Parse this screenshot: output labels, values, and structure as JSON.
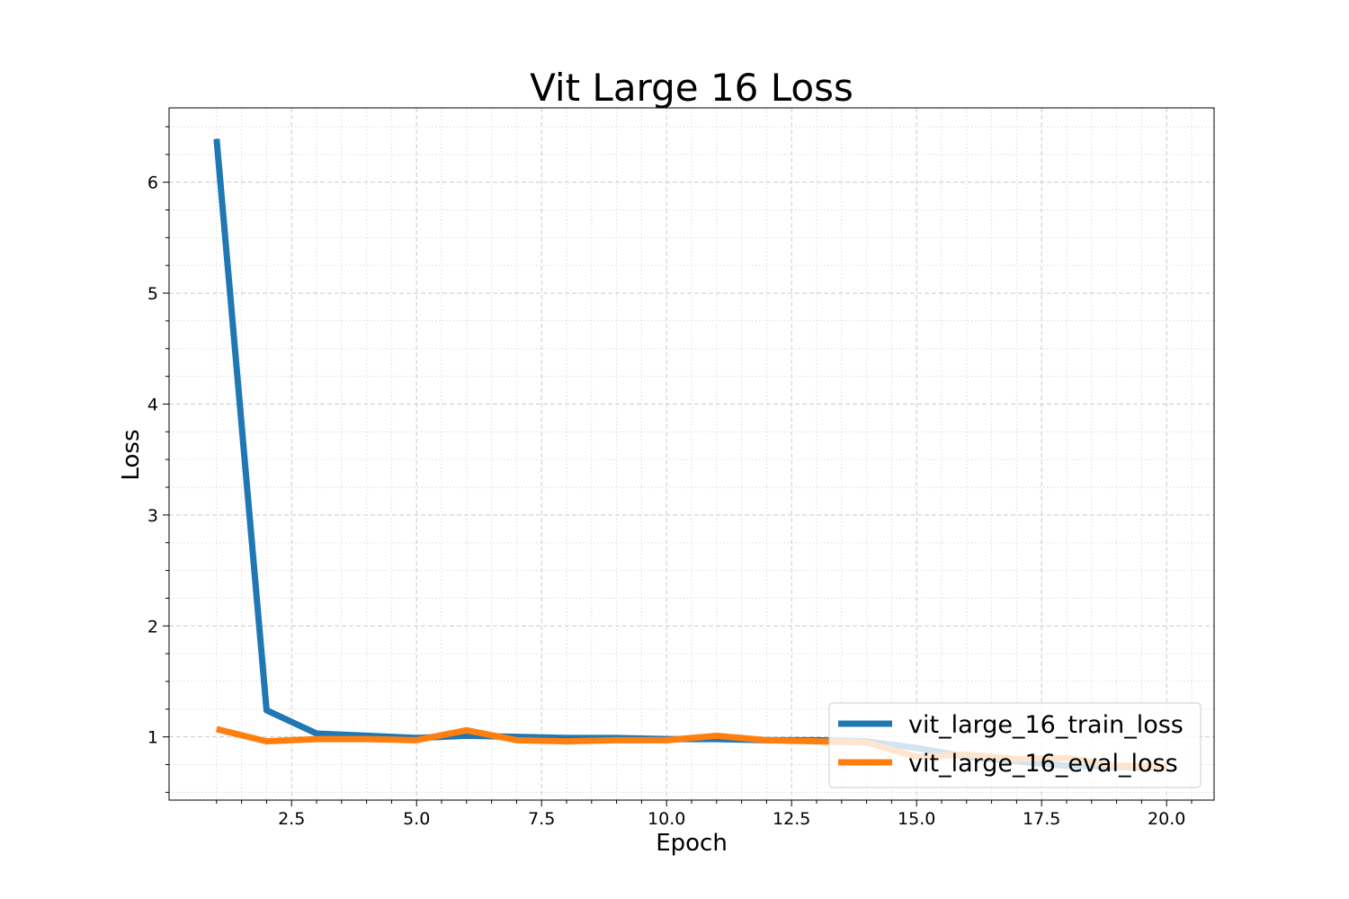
{
  "chart_data": {
    "type": "line",
    "title": "Vit Large 16 Loss",
    "xlabel": "Epoch",
    "ylabel": "Loss",
    "xlim": [
      0.05,
      20.95
    ],
    "ylim": [
      0.43,
      6.67
    ],
    "xticks": [
      2.5,
      5.0,
      7.5,
      10.0,
      12.5,
      15.0,
      17.5,
      20.0
    ],
    "xtick_labels": [
      "2.5",
      "5.0",
      "7.5",
      "10.0",
      "12.5",
      "15.0",
      "17.5",
      "20.0"
    ],
    "yticks": [
      1,
      2,
      3,
      4,
      5,
      6
    ],
    "ytick_labels": [
      "1",
      "2",
      "3",
      "4",
      "5",
      "6"
    ],
    "grid": true,
    "legend_position": "lower-right",
    "x": [
      1,
      2,
      3,
      4,
      5,
      6,
      7,
      8,
      9,
      10,
      11,
      12,
      13,
      14,
      15,
      16,
      17,
      18,
      19,
      20
    ],
    "series": [
      {
        "name": "vit_large_16_train_loss",
        "color": "#1f77b4",
        "values": [
          6.39,
          1.24,
          1.03,
          1.01,
          0.99,
          1.01,
          1.0,
          0.99,
          0.99,
          0.98,
          0.98,
          0.97,
          0.97,
          0.96,
          0.9,
          0.82,
          0.78,
          0.74,
          0.73,
          0.72
        ]
      },
      {
        "name": "vit_large_16_eval_loss",
        "color": "#ff7f0e",
        "values": [
          1.07,
          0.96,
          0.98,
          0.98,
          0.97,
          1.06,
          0.97,
          0.96,
          0.97,
          0.97,
          1.01,
          0.97,
          0.96,
          0.95,
          0.82,
          0.84,
          0.8,
          0.81,
          0.74,
          0.73
        ]
      }
    ]
  }
}
